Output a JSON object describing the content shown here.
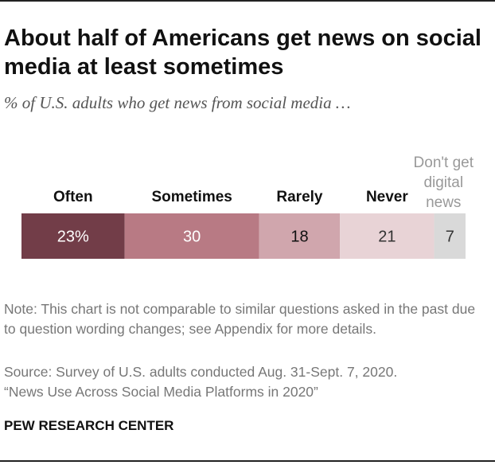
{
  "title": "About half of Americans get news on social media at least sometimes",
  "subtitle": "% of U.S. adults who get news from social media …",
  "chart_data": {
    "type": "bar",
    "orientation": "horizontal-stacked",
    "categories": [
      "Often",
      "Sometimes",
      "Rarely",
      "Never",
      "Don't get digital news"
    ],
    "values": [
      23,
      30,
      18,
      21,
      7
    ],
    "data_labels": [
      "23%",
      "30",
      "18",
      "21",
      "7"
    ],
    "colors": [
      "#723d48",
      "#b87a84",
      "#d0a6ad",
      "#e8d3d6",
      "#d9d9d9"
    ],
    "label_colors": [
      "#ffffff",
      "#ffffff",
      "#111111",
      "#333333",
      "#333333"
    ],
    "category_label_colors": [
      "#111111",
      "#111111",
      "#111111",
      "#111111",
      "#999999"
    ]
  },
  "note": "Note: This chart is not comparable to similar questions asked in the past due to question wording changes; see Appendix for more details.",
  "source": "Source: Survey of U.S. adults conducted Aug. 31-Sept. 7, 2020.",
  "report": "“News Use Across Social Media Platforms in 2020”",
  "brand": "PEW RESEARCH CENTER"
}
